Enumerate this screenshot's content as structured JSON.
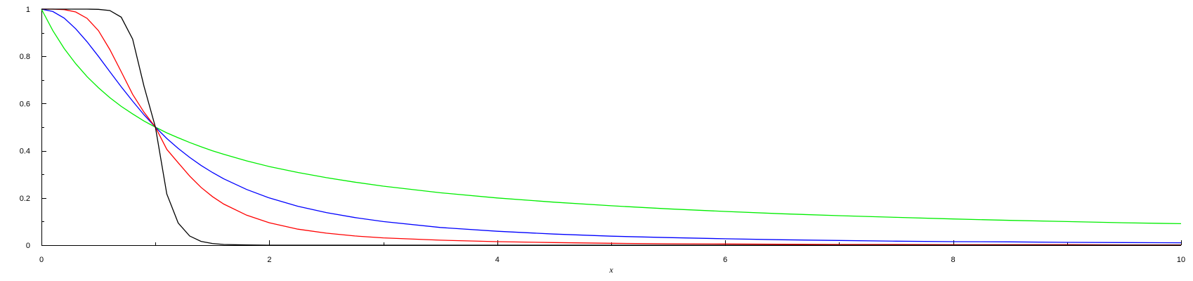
{
  "chart_data": {
    "type": "line",
    "title": "",
    "xlabel": "x",
    "ylabel": "",
    "xlim": [
      0,
      10
    ],
    "ylim": [
      0,
      1
    ],
    "grid": false,
    "x_ticks": [
      {
        "value": 0,
        "label": "0"
      },
      {
        "value": 2,
        "label": "2"
      },
      {
        "value": 4,
        "label": "4"
      },
      {
        "value": 6,
        "label": "6"
      },
      {
        "value": 8,
        "label": "8"
      },
      {
        "value": 10,
        "label": "10"
      }
    ],
    "x_minor_ticks": [
      1,
      3,
      5,
      7,
      9
    ],
    "y_ticks": [
      {
        "value": 0,
        "label": "0"
      },
      {
        "value": 0.2,
        "label": "0.2"
      },
      {
        "value": 0.4,
        "label": "0.4"
      },
      {
        "value": 0.6,
        "label": "0.6"
      },
      {
        "value": 0.8,
        "label": "0.8"
      },
      {
        "value": 1,
        "label": "1"
      }
    ],
    "y_minor_ticks": [
      0.1,
      0.3,
      0.5,
      0.7,
      0.9
    ],
    "x": [
      0,
      0.1,
      0.2,
      0.3,
      0.4,
      0.5,
      0.6,
      0.7,
      0.8,
      0.9,
      1,
      1.1,
      1.2,
      1.3,
      1.4,
      1.5,
      1.6,
      1.8,
      2,
      2.25,
      2.5,
      2.75,
      3,
      3.5,
      4,
      4.5,
      5,
      5.5,
      6,
      6.5,
      7,
      7.5,
      8,
      8.5,
      9,
      9.5,
      10
    ],
    "series": [
      {
        "color": "#00ee00",
        "values": [
          1,
          0.909,
          0.833,
          0.769,
          0.714,
          0.667,
          0.625,
          0.588,
          0.556,
          0.526,
          0.5,
          0.476,
          0.455,
          0.435,
          0.417,
          0.4,
          0.385,
          0.357,
          0.333,
          0.308,
          0.286,
          0.267,
          0.25,
          0.222,
          0.2,
          0.182,
          0.167,
          0.154,
          0.143,
          0.133,
          0.125,
          0.118,
          0.111,
          0.105,
          0.1,
          0.095,
          0.091
        ]
      },
      {
        "color": "#0000ff",
        "values": [
          1,
          0.99,
          0.962,
          0.917,
          0.862,
          0.8,
          0.735,
          0.671,
          0.61,
          0.552,
          0.5,
          0.452,
          0.41,
          0.372,
          0.338,
          0.308,
          0.281,
          0.236,
          0.2,
          0.165,
          0.138,
          0.117,
          0.1,
          0.075,
          0.059,
          0.047,
          0.038,
          0.032,
          0.027,
          0.023,
          0.02,
          0.017,
          0.015,
          0.014,
          0.012,
          0.011,
          0.01
        ]
      },
      {
        "color": "#ff0000",
        "values": [
          1,
          1,
          0.998,
          0.988,
          0.961,
          0.909,
          0.829,
          0.735,
          0.639,
          0.563,
          0.5,
          0.406,
          0.349,
          0.293,
          0.245,
          0.206,
          0.174,
          0.127,
          0.095,
          0.068,
          0.051,
          0.039,
          0.031,
          0.021,
          0.015,
          0.011,
          0.008,
          0.006,
          0.005,
          0.004,
          0.003,
          0.003,
          0.002,
          0.002,
          0.002,
          0.001,
          0.001
        ]
      },
      {
        "color": "#000000",
        "values": [
          1,
          1,
          1,
          1,
          1,
          0.999,
          0.994,
          0.966,
          0.873,
          0.673,
          0.5,
          0.217,
          0.094,
          0.039,
          0.016,
          0.007,
          0.003,
          0.001,
          0,
          0,
          0,
          0,
          0,
          0,
          0,
          0,
          0,
          0,
          0,
          0,
          0,
          0,
          0,
          0,
          0,
          0,
          0
        ]
      }
    ]
  }
}
